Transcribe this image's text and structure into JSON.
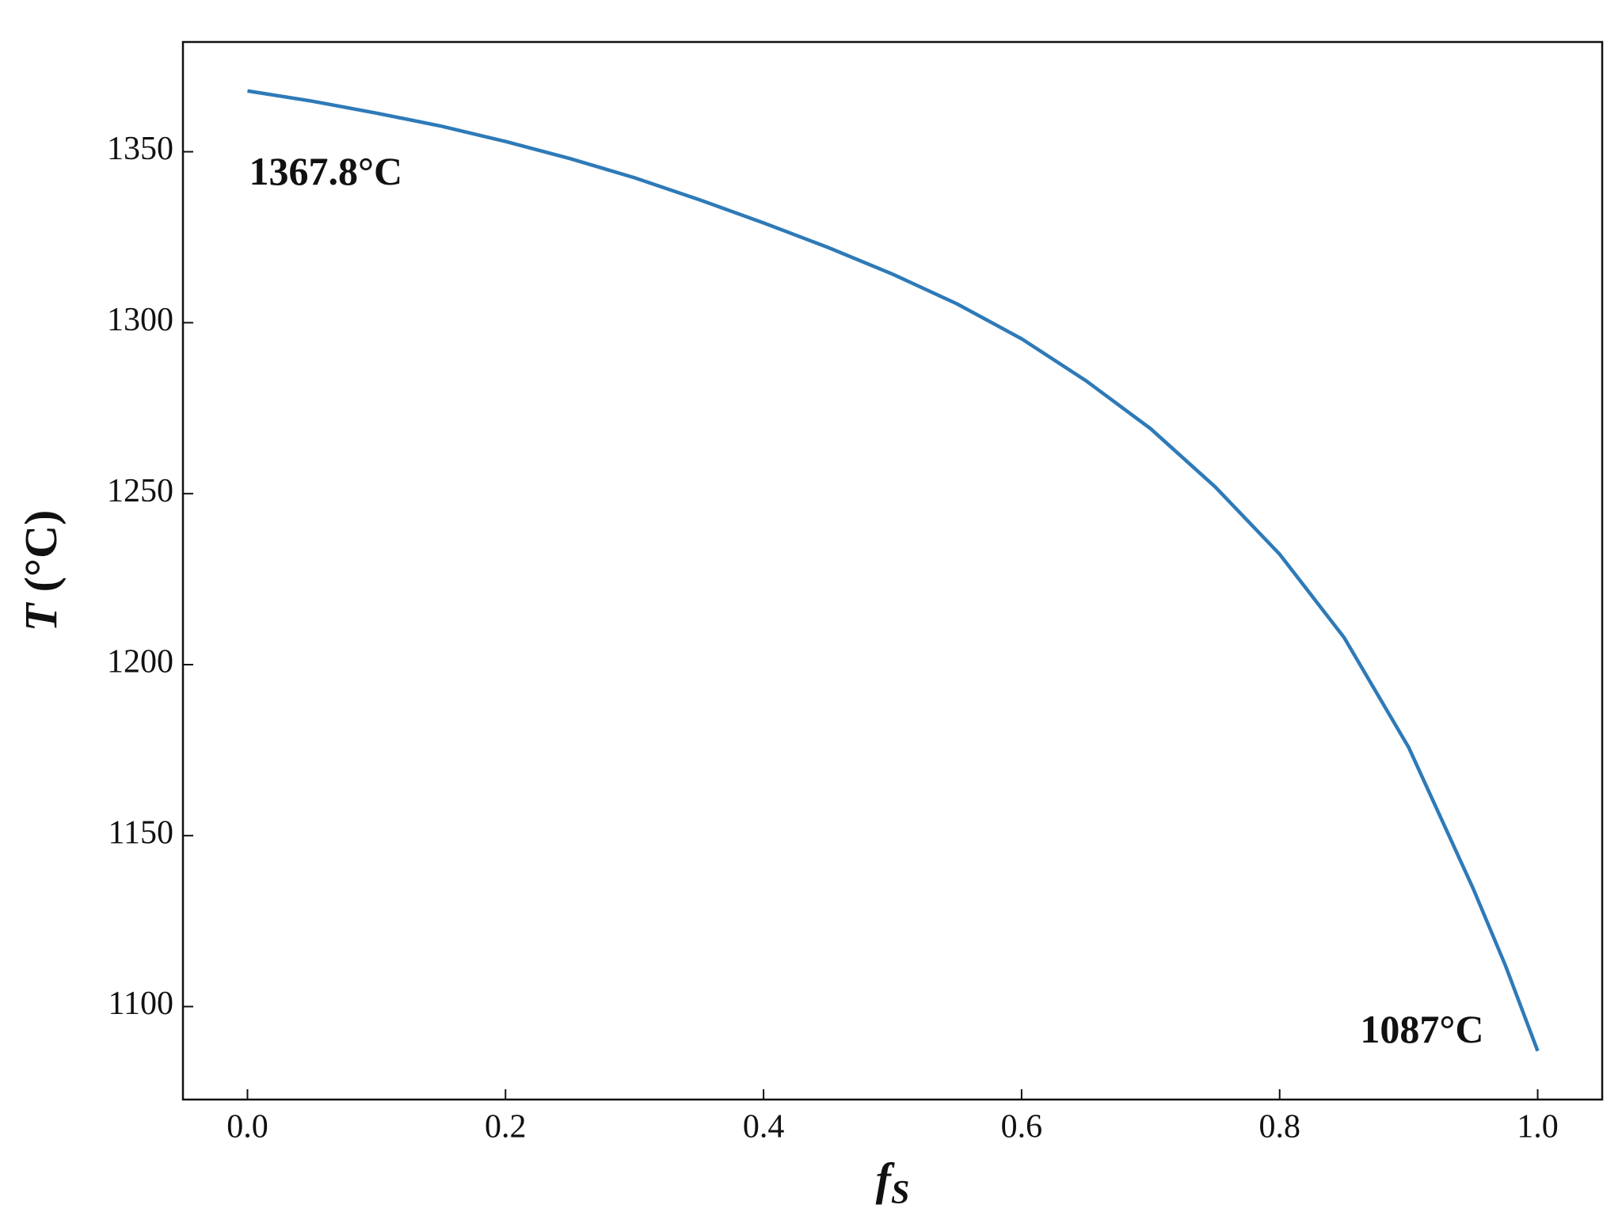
{
  "chart_data": {
    "type": "line",
    "x": [
      0,
      0.05,
      0.1,
      0.15,
      0.2,
      0.25,
      0.3,
      0.35,
      0.4,
      0.45,
      0.5,
      0.55,
      0.6,
      0.65,
      0.7,
      0.75,
      0.8,
      0.85,
      0.9,
      0.95,
      0.975,
      1.0
    ],
    "series": [
      {
        "color": "#2e7ab8",
        "values": [
          1367.8,
          1364.8,
          1361.3,
          1357.5,
          1353,
          1348,
          1342.4,
          1336,
          1329.2,
          1322,
          1314.2,
          1305.5,
          1295.3,
          1283,
          1269,
          1252,
          1232.3,
          1207.9,
          1175.8,
          1134.5,
          1112,
          1087
        ]
      }
    ],
    "xlabel": "fS",
    "ylabel": "T (°C)",
    "xlim": [
      -0.05,
      1.05
    ],
    "ylim": [
      1072.8,
      1382.1
    ],
    "xticks": [
      {
        "value": 0,
        "label": "0.0"
      },
      0.2,
      0.4,
      0.6,
      0.8,
      {
        "value": 1,
        "label": "1.0"
      }
    ],
    "yticks": [
      1100,
      1150,
      1200,
      1250,
      1300,
      1350
    ],
    "annotations": [
      {
        "text": "1367.8°C"
      },
      {
        "text": "1087°C"
      }
    ],
    "grid": false
  }
}
